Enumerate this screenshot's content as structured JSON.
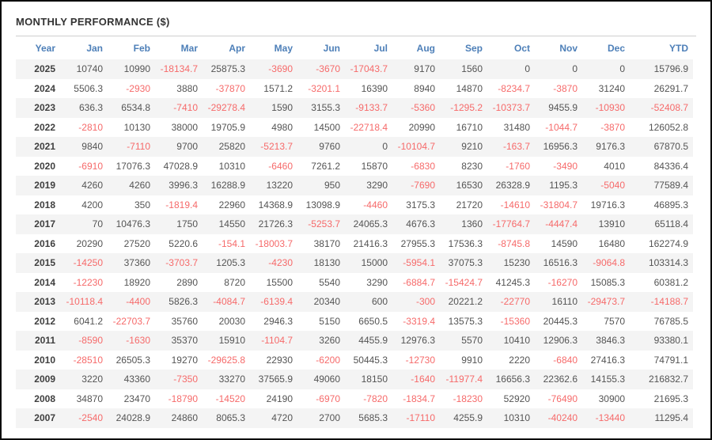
{
  "title": "MONTHLY PERFORMANCE ($)",
  "colors": {
    "title": "#333333",
    "header_text": "#4d7fb8",
    "positive_value": "#545454",
    "negative_value": "#f66a6a",
    "year_text": "#3f3f3f",
    "row_stripe": "#f4f4f4",
    "divider": "#cfcfcf",
    "frame_border": "#0a0a0a"
  },
  "table": {
    "columns": [
      "Year",
      "Jan",
      "Feb",
      "Mar",
      "Apr",
      "May",
      "Jun",
      "Jul",
      "Aug",
      "Sep",
      "Oct",
      "Nov",
      "Dec",
      "YTD"
    ],
    "rows": [
      {
        "year": "2025",
        "values": [
          "10740",
          "10990",
          "-18134.7",
          "25875.3",
          "-3690",
          "-3670",
          "-17043.7",
          "9170",
          "1560",
          "0",
          "0",
          "0",
          "15796.9"
        ]
      },
      {
        "year": "2024",
        "values": [
          "5506.3",
          "-2930",
          "3880",
          "-37870",
          "1571.2",
          "-3201.1",
          "16390",
          "8940",
          "14870",
          "-8234.7",
          "-3870",
          "31240",
          "26291.7"
        ]
      },
      {
        "year": "2023",
        "values": [
          "636.3",
          "6534.8",
          "-7410",
          "-29278.4",
          "1590",
          "3155.3",
          "-9133.7",
          "-5360",
          "-1295.2",
          "-10373.7",
          "9455.9",
          "-10930",
          "-52408.7"
        ]
      },
      {
        "year": "2022",
        "values": [
          "-2810",
          "10130",
          "38000",
          "19705.9",
          "4980",
          "14500",
          "-22718.4",
          "20990",
          "16710",
          "31480",
          "-1044.7",
          "-3870",
          "126052.8"
        ]
      },
      {
        "year": "2021",
        "values": [
          "9840",
          "-7110",
          "9700",
          "25820",
          "-5213.7",
          "9760",
          "0",
          "-10104.7",
          "9210",
          "-163.7",
          "16956.3",
          "9176.3",
          "67870.5"
        ]
      },
      {
        "year": "2020",
        "values": [
          "-6910",
          "17076.3",
          "47028.9",
          "10310",
          "-6460",
          "7261.2",
          "15870",
          "-6830",
          "8230",
          "-1760",
          "-3490",
          "4010",
          "84336.4"
        ]
      },
      {
        "year": "2019",
        "values": [
          "4260",
          "4260",
          "3996.3",
          "16288.9",
          "13220",
          "950",
          "3290",
          "-7690",
          "16530",
          "26328.9",
          "1195.3",
          "-5040",
          "77589.4"
        ]
      },
      {
        "year": "2018",
        "values": [
          "4200",
          "350",
          "-1819.4",
          "22960",
          "14368.9",
          "13098.9",
          "-4460",
          "3175.3",
          "21720",
          "-14610",
          "-31804.7",
          "19716.3",
          "46895.3"
        ]
      },
      {
        "year": "2017",
        "values": [
          "70",
          "10476.3",
          "1750",
          "14550",
          "21726.3",
          "-5253.7",
          "24065.3",
          "4676.3",
          "1360",
          "-17764.7",
          "-4447.4",
          "13910",
          "65118.4"
        ]
      },
      {
        "year": "2016",
        "values": [
          "20290",
          "27520",
          "5220.6",
          "-154.1",
          "-18003.7",
          "38170",
          "21416.3",
          "27955.3",
          "17536.3",
          "-8745.8",
          "14590",
          "16480",
          "162274.9"
        ]
      },
      {
        "year": "2015",
        "values": [
          "-14250",
          "37360",
          "-3703.7",
          "1205.3",
          "-4230",
          "18130",
          "15000",
          "-5954.1",
          "37075.3",
          "15230",
          "16516.3",
          "-9064.8",
          "103314.3"
        ]
      },
      {
        "year": "2014",
        "values": [
          "-12230",
          "18920",
          "2890",
          "8720",
          "15500",
          "5540",
          "3290",
          "-6884.7",
          "-15424.7",
          "41245.3",
          "-16270",
          "15085.3",
          "60381.2"
        ]
      },
      {
        "year": "2013",
        "values": [
          "-10118.4",
          "-4400",
          "5826.3",
          "-4084.7",
          "-6139.4",
          "20340",
          "600",
          "-300",
          "20221.2",
          "-22770",
          "16110",
          "-29473.7",
          "-14188.7"
        ]
      },
      {
        "year": "2012",
        "values": [
          "6041.2",
          "-22703.7",
          "35760",
          "20030",
          "2946.3",
          "5150",
          "6650.5",
          "-3319.4",
          "13575.3",
          "-15360",
          "20445.3",
          "7570",
          "76785.5"
        ]
      },
      {
        "year": "2011",
        "values": [
          "-8590",
          "-1630",
          "35370",
          "15910",
          "-1104.7",
          "3260",
          "4455.9",
          "12976.3",
          "5570",
          "10410",
          "12906.3",
          "3846.3",
          "93380.1"
        ]
      },
      {
        "year": "2010",
        "values": [
          "-28510",
          "26505.3",
          "19270",
          "-29625.8",
          "22930",
          "-6200",
          "50445.3",
          "-12730",
          "9910",
          "2220",
          "-6840",
          "27416.3",
          "74791.1"
        ]
      },
      {
        "year": "2009",
        "values": [
          "3220",
          "43360",
          "-7350",
          "33270",
          "37565.9",
          "49060",
          "18150",
          "-1640",
          "-11977.4",
          "16656.3",
          "22362.6",
          "14155.3",
          "216832.7"
        ]
      },
      {
        "year": "2008",
        "values": [
          "34870",
          "23470",
          "-18790",
          "-14520",
          "24190",
          "-6970",
          "-7820",
          "-1834.7",
          "-18230",
          "52920",
          "-76490",
          "30900",
          "21695.3"
        ]
      },
      {
        "year": "2007",
        "values": [
          "-2540",
          "24028.9",
          "24860",
          "8065.3",
          "4720",
          "2700",
          "5685.3",
          "-17110",
          "4255.9",
          "10310",
          "-40240",
          "-13440",
          "11295.4"
        ]
      }
    ]
  }
}
